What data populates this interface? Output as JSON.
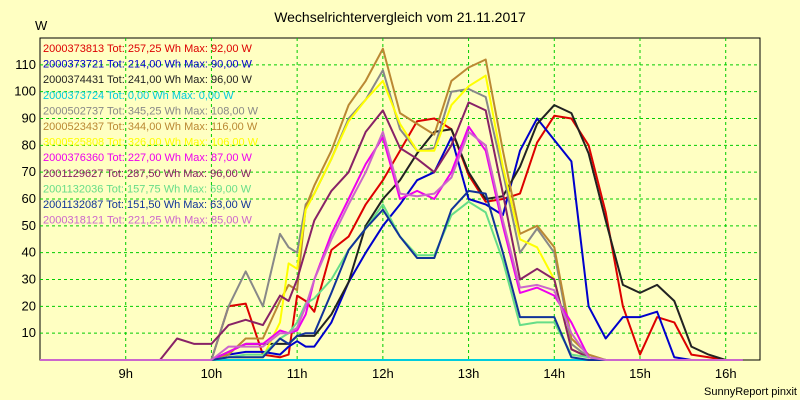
{
  "chart_data": {
    "type": "line",
    "title": "Wechselrichtervergleich vom 21.11.2017",
    "ylabel": "W",
    "xlabel": "",
    "footer": "SunnyReport pinxit",
    "ylim": [
      0,
      120
    ],
    "xlim": [
      8.0,
      16.4
    ],
    "y_ticks": [
      10,
      20,
      30,
      40,
      50,
      60,
      70,
      80,
      90,
      100,
      110
    ],
    "x_ticks": [
      {
        "value": 9,
        "label": "9h"
      },
      {
        "value": 10,
        "label": "10h"
      },
      {
        "value": 11,
        "label": "11h"
      },
      {
        "value": 12,
        "label": "12h"
      },
      {
        "value": 13,
        "label": "13h"
      },
      {
        "value": 14,
        "label": "14h"
      },
      {
        "value": 15,
        "label": "15h"
      },
      {
        "value": 16,
        "label": "16h"
      }
    ],
    "grid": true,
    "legend_position": "top-left",
    "x": [
      8.0,
      8.6,
      9.0,
      9.4,
      9.6,
      9.8,
      10.0,
      10.2,
      10.4,
      10.6,
      10.8,
      10.9,
      11.0,
      11.1,
      11.2,
      11.4,
      11.6,
      11.8,
      12.0,
      12.2,
      12.4,
      12.6,
      12.8,
      13.0,
      13.2,
      13.4,
      13.6,
      13.8,
      14.0,
      14.2,
      14.4,
      14.6,
      14.8,
      15.0,
      15.2,
      15.4,
      15.6,
      15.8,
      16.0,
      16.2
    ],
    "series": [
      {
        "name": "2000373813 Tot: 257,25 Wh Max: 92,00 W",
        "color": "#dd0000",
        "values": [
          0,
          0,
          0,
          0,
          0,
          0,
          0,
          20,
          21,
          2,
          1,
          2,
          24,
          22,
          18,
          41,
          46,
          58,
          67,
          78,
          89,
          90,
          86,
          69,
          59,
          60,
          62,
          81,
          91,
          90,
          80,
          55,
          20,
          2,
          16,
          14,
          2,
          1,
          0,
          0
        ]
      },
      {
        "name": "2000373721 Tot: 214,00 Wh Max: 90,00 W",
        "color": "#0000cc",
        "values": [
          0,
          0,
          0,
          0,
          0,
          0,
          0,
          2,
          3,
          3,
          2,
          5,
          7,
          5,
          5,
          14,
          29,
          40,
          50,
          58,
          67,
          70,
          83,
          60,
          58,
          54,
          78,
          90,
          82,
          74,
          20,
          8,
          16,
          16,
          18,
          1,
          0,
          0,
          0,
          0
        ]
      },
      {
        "name": "2000374431 Tot: 241,00 Wh Max: 96,00 W",
        "color": "#222222",
        "values": [
          0,
          0,
          0,
          0,
          0,
          0,
          0,
          3,
          6,
          6,
          6,
          6,
          9,
          9,
          9,
          17,
          29,
          50,
          60,
          67,
          77,
          85,
          86,
          70,
          60,
          61,
          72,
          88,
          95,
          92,
          77,
          52,
          28,
          25,
          28,
          22,
          5,
          2,
          0,
          0
        ]
      },
      {
        "name": "2000373724 Tot: 0,00 Wh Max: 0,00 W",
        "color": "#00ccdd",
        "values": [
          0,
          0,
          0,
          0,
          0,
          0,
          0,
          0,
          0,
          0,
          0,
          0,
          0,
          0,
          0,
          0,
          0,
          0,
          0,
          0,
          0,
          0,
          0,
          0,
          0,
          0,
          0,
          0,
          0,
          0,
          0,
          0,
          0,
          0,
          0,
          0,
          0,
          0,
          0,
          0
        ]
      },
      {
        "name": "2000502737 Tot: 345,25 Wh Max: 108,00 W",
        "color": "#888888",
        "values": [
          0,
          0,
          0,
          0,
          0,
          0,
          0,
          20,
          33,
          20,
          47,
          42,
          40,
          58,
          62,
          75,
          90,
          97,
          108,
          86,
          78,
          79,
          100,
          101,
          98,
          70,
          40,
          49,
          40,
          6,
          1,
          0,
          0,
          0,
          0,
          0,
          0,
          0,
          0,
          0
        ]
      },
      {
        "name": "2000523437 Tot: 344,00 Wh Max: 116,00 W",
        "color": "#bb8833",
        "values": [
          0,
          0,
          0,
          0,
          0,
          0,
          0,
          2,
          8,
          8,
          22,
          28,
          26,
          57,
          65,
          78,
          95,
          104,
          116,
          92,
          88,
          84,
          104,
          109,
          112,
          78,
          47,
          50,
          42,
          8,
          2,
          0,
          0,
          0,
          0,
          0,
          0,
          0,
          0,
          0
        ]
      },
      {
        "name": "3000525808 Tot: 326,00 Wh Max: 106,00 W",
        "color": "#ffff00",
        "values": [
          0,
          0,
          0,
          0,
          0,
          0,
          0,
          1,
          1,
          1,
          14,
          36,
          34,
          56,
          62,
          75,
          89,
          97,
          104,
          88,
          78,
          78,
          95,
          102,
          106,
          72,
          45,
          42,
          30,
          4,
          1,
          0,
          0,
          0,
          0,
          0,
          0,
          0,
          0,
          0
        ]
      },
      {
        "name": "2000376360 Tot: 227,00 Wh Max: 87,00 W",
        "color": "#ee00ee",
        "values": [
          0,
          0,
          0,
          0,
          0,
          0,
          0,
          3,
          6,
          6,
          11,
          10,
          11,
          17,
          30,
          47,
          60,
          73,
          83,
          60,
          63,
          60,
          70,
          87,
          78,
          50,
          25,
          27,
          24,
          14,
          1,
          0,
          0,
          0,
          0,
          0,
          0,
          0,
          0,
          0
        ]
      },
      {
        "name": "2001129627 Tot: 287,50 Wh Max: 96,00 W",
        "color": "#882266",
        "values": [
          0,
          0,
          0,
          0,
          8,
          6,
          6,
          13,
          15,
          13,
          24,
          22,
          30,
          41,
          52,
          63,
          70,
          85,
          93,
          79,
          75,
          70,
          80,
          96,
          93,
          62,
          30,
          34,
          30,
          4,
          1,
          0,
          0,
          0,
          0,
          0,
          0,
          0,
          0,
          0
        ]
      },
      {
        "name": "2001132036 Tot: 157,75 Wh Max: 59,00 W",
        "color": "#66dd88",
        "values": [
          0,
          0,
          0,
          0,
          0,
          0,
          0,
          1,
          2,
          2,
          8,
          10,
          14,
          21,
          23,
          30,
          41,
          49,
          58,
          46,
          39,
          39,
          54,
          59,
          55,
          37,
          13,
          14,
          14,
          2,
          1,
          0,
          0,
          0,
          0,
          0,
          0,
          0,
          0,
          0
        ]
      },
      {
        "name": "2001132087 Tot: 151,50 Wh Max: 63,00 W",
        "color": "#113399",
        "values": [
          0,
          0,
          0,
          0,
          0,
          0,
          0,
          1,
          1,
          1,
          8,
          6,
          9,
          10,
          10,
          25,
          41,
          49,
          56,
          46,
          38,
          38,
          56,
          63,
          62,
          40,
          16,
          16,
          16,
          1,
          0,
          0,
          0,
          0,
          0,
          0,
          0,
          0,
          0,
          0
        ]
      },
      {
        "name": "2000318121 Tot: 221,25 Wh Max: 85,00 W",
        "color": "#cc66cc",
        "values": [
          0,
          0,
          0,
          0,
          0,
          0,
          0,
          5,
          5,
          5,
          10,
          10,
          12,
          20,
          30,
          45,
          58,
          70,
          85,
          62,
          61,
          62,
          68,
          85,
          80,
          52,
          27,
          28,
          26,
          10,
          1,
          0,
          0,
          0,
          0,
          0,
          0,
          0,
          0,
          0
        ]
      }
    ]
  }
}
